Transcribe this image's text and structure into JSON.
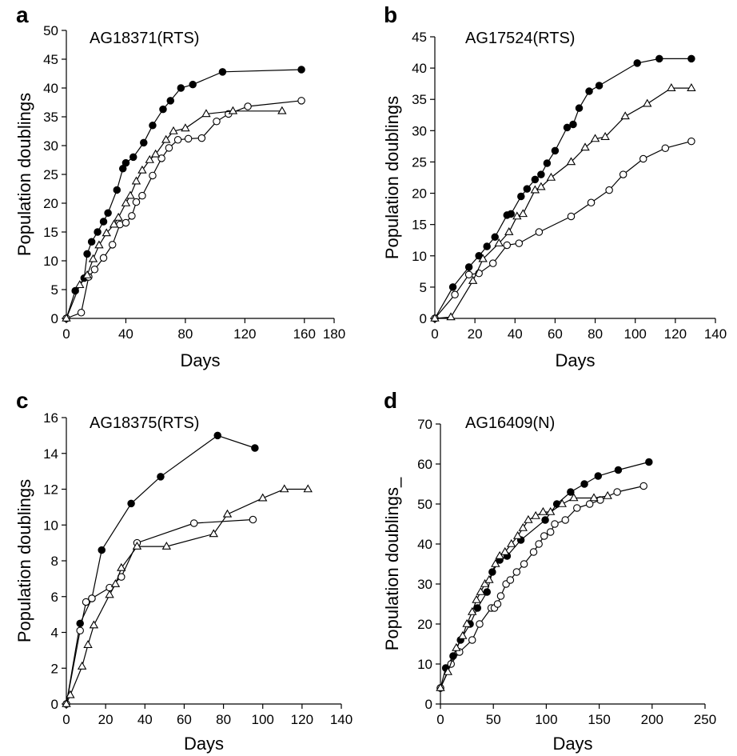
{
  "chart_data": [
    {
      "type": "line",
      "panel": "a",
      "title": "AG18371(RTS)",
      "xlabel": "Days",
      "ylabel": "Population doublings",
      "xlim": [
        0,
        180
      ],
      "ylim": [
        0,
        50
      ],
      "xticks": [
        0,
        40,
        80,
        120,
        160,
        180
      ],
      "yticks": [
        0,
        5,
        10,
        15,
        20,
        25,
        30,
        35,
        40,
        45,
        50
      ],
      "series": [
        {
          "marker": "filled-circle",
          "points": [
            [
              0,
              0
            ],
            [
              6,
              4.8
            ],
            [
              12,
              7
            ],
            [
              14,
              11.2
            ],
            [
              17,
              13.3
            ],
            [
              21,
              15
            ],
            [
              25,
              16.8
            ],
            [
              28,
              18.3
            ],
            [
              34,
              22.3
            ],
            [
              38,
              26
            ],
            [
              40,
              27
            ],
            [
              45,
              28
            ],
            [
              52,
              30.5
            ],
            [
              58,
              33.5
            ],
            [
              65,
              36.3
            ],
            [
              70,
              37.8
            ],
            [
              77,
              40
            ],
            [
              85,
              40.6
            ],
            [
              105,
              42.8
            ],
            [
              158,
              43.2
            ]
          ]
        },
        {
          "marker": "open-circle",
          "points": [
            [
              0,
              0
            ],
            [
              10,
              1
            ],
            [
              15,
              7.2
            ],
            [
              19,
              8.5
            ],
            [
              25,
              10.5
            ],
            [
              31,
              12.8
            ],
            [
              36,
              16.3
            ],
            [
              40,
              16.6
            ],
            [
              44,
              17.8
            ],
            [
              47,
              20.2
            ],
            [
              51,
              21.3
            ],
            [
              58,
              24.8
            ],
            [
              64,
              27.8
            ],
            [
              69,
              29.6
            ],
            [
              75,
              31
            ],
            [
              82,
              31.2
            ],
            [
              91,
              31.3
            ],
            [
              101,
              34.2
            ],
            [
              109,
              35.5
            ],
            [
              122,
              36.8
            ],
            [
              158,
              37.8
            ]
          ]
        },
        {
          "marker": "open-triangle",
          "points": [
            [
              0,
              0
            ],
            [
              9,
              5.8
            ],
            [
              14,
              7.5
            ],
            [
              18,
              10.3
            ],
            [
              22,
              12.7
            ],
            [
              27,
              14.8
            ],
            [
              32,
              16.3
            ],
            [
              35,
              17.5
            ],
            [
              40,
              20
            ],
            [
              43,
              21.3
            ],
            [
              47,
              23.8
            ],
            [
              51,
              25.7
            ],
            [
              56,
              27.5
            ],
            [
              60,
              28.5
            ],
            [
              67,
              31
            ],
            [
              72,
              32.5
            ],
            [
              80,
              33
            ],
            [
              94,
              35.5
            ],
            [
              112,
              36
            ],
            [
              145,
              36
            ]
          ]
        }
      ]
    },
    {
      "type": "line",
      "panel": "b",
      "title": "AG17524(RTS)",
      "xlabel": "Days",
      "ylabel": "Population doublings",
      "xlim": [
        0,
        140
      ],
      "ylim": [
        0,
        45
      ],
      "xticks": [
        0,
        20,
        40,
        60,
        80,
        100,
        120,
        140
      ],
      "yticks": [
        0,
        5,
        10,
        15,
        20,
        25,
        30,
        35,
        40,
        45
      ],
      "series": [
        {
          "marker": "filled-circle",
          "points": [
            [
              0,
              0
            ],
            [
              9,
              5
            ],
            [
              17,
              8.2
            ],
            [
              22,
              10
            ],
            [
              26,
              11.5
            ],
            [
              30,
              13
            ],
            [
              36,
              16.5
            ],
            [
              38,
              16.7
            ],
            [
              43,
              19.5
            ],
            [
              46,
              20.7
            ],
            [
              50,
              22.2
            ],
            [
              53,
              23
            ],
            [
              56,
              24.8
            ],
            [
              60,
              26.8
            ],
            [
              66,
              30.5
            ],
            [
              69,
              31
            ],
            [
              72,
              33.6
            ],
            [
              77,
              36.3
            ],
            [
              82,
              37.2
            ],
            [
              101,
              40.8
            ],
            [
              112,
              41.5
            ],
            [
              128,
              41.5
            ]
          ]
        },
        {
          "marker": "open-circle",
          "points": [
            [
              0,
              0
            ],
            [
              10,
              3.8
            ],
            [
              17,
              7
            ],
            [
              22,
              7.2
            ],
            [
              29,
              8.8
            ],
            [
              36,
              11.7
            ],
            [
              42,
              12
            ],
            [
              52,
              13.8
            ],
            [
              68,
              16.3
            ],
            [
              78,
              18.5
            ],
            [
              87,
              20.5
            ],
            [
              94,
              23
            ],
            [
              104,
              25.5
            ],
            [
              115,
              27.2
            ],
            [
              128,
              28.3
            ]
          ]
        },
        {
          "marker": "open-triangle",
          "points": [
            [
              0,
              0
            ],
            [
              8,
              0.2
            ],
            [
              19,
              6
            ],
            [
              24,
              9.5
            ],
            [
              32,
              12
            ],
            [
              37,
              13.8
            ],
            [
              41,
              16.3
            ],
            [
              44,
              16.7
            ],
            [
              50,
              20.5
            ],
            [
              53,
              21
            ],
            [
              58,
              22.5
            ],
            [
              68,
              25
            ],
            [
              75,
              27.3
            ],
            [
              80,
              28.7
            ],
            [
              85,
              29
            ],
            [
              95,
              32.3
            ],
            [
              106,
              34.3
            ],
            [
              118,
              36.8
            ],
            [
              128,
              36.8
            ]
          ]
        }
      ]
    },
    {
      "type": "line",
      "panel": "c",
      "title": "AG18375(RTS)",
      "xlabel": "Days",
      "ylabel": "Population doublings",
      "xlim": [
        0,
        140
      ],
      "ylim": [
        0,
        16
      ],
      "xticks": [
        0,
        20,
        40,
        60,
        80,
        100,
        120,
        140
      ],
      "yticks": [
        0,
        2,
        4,
        6,
        8,
        10,
        12,
        14,
        16
      ],
      "series": [
        {
          "marker": "filled-circle",
          "points": [
            [
              0,
              0
            ],
            [
              7,
              4.5
            ],
            [
              13,
              5.9
            ],
            [
              18,
              8.6
            ],
            [
              33,
              11.2
            ],
            [
              48,
              12.7
            ],
            [
              77,
              15
            ],
            [
              96,
              14.3
            ]
          ]
        },
        {
          "marker": "open-circle",
          "points": [
            [
              0,
              0
            ],
            [
              7,
              4.1
            ],
            [
              10,
              5.7
            ],
            [
              13,
              5.9
            ],
            [
              22,
              6.5
            ],
            [
              28,
              7.1
            ],
            [
              36,
              9
            ],
            [
              65,
              10.1
            ],
            [
              95,
              10.3
            ]
          ]
        },
        {
          "marker": "open-triangle",
          "points": [
            [
              0,
              0
            ],
            [
              2,
              0.5
            ],
            [
              8,
              2.1
            ],
            [
              11,
              3.3
            ],
            [
              14,
              4.4
            ],
            [
              22,
              6.1
            ],
            [
              25,
              6.7
            ],
            [
              28,
              7.6
            ],
            [
              36,
              8.8
            ],
            [
              51,
              8.8
            ],
            [
              75,
              9.5
            ],
            [
              82,
              10.6
            ],
            [
              100,
              11.5
            ],
            [
              111,
              12
            ],
            [
              123,
              12
            ]
          ]
        }
      ]
    },
    {
      "type": "line",
      "panel": "d",
      "title": "AG16409(N)",
      "xlabel": "Days",
      "ylabel": "Population doublings_",
      "xlim": [
        0,
        250
      ],
      "ylim": [
        0,
        70
      ],
      "xticks": [
        0,
        50,
        100,
        150,
        200,
        250
      ],
      "yticks": [
        0,
        10,
        20,
        30,
        40,
        50,
        60,
        70
      ],
      "series": [
        {
          "marker": "filled-circle",
          "points": [
            [
              0,
              4
            ],
            [
              5,
              9
            ],
            [
              12,
              12
            ],
            [
              19,
              16
            ],
            [
              28,
              20
            ],
            [
              35,
              24
            ],
            [
              44,
              28
            ],
            [
              49,
              33
            ],
            [
              56,
              36
            ],
            [
              63,
              37
            ],
            [
              76,
              41
            ],
            [
              99,
              46
            ],
            [
              110,
              50
            ],
            [
              123,
              53
            ],
            [
              136,
              55
            ],
            [
              149,
              57
            ],
            [
              168,
              58.5
            ],
            [
              197,
              60.5
            ]
          ]
        },
        {
          "marker": "open-circle",
          "points": [
            [
              0,
              4
            ],
            [
              10,
              10
            ],
            [
              18,
              13
            ],
            [
              30,
              16
            ],
            [
              37,
              20
            ],
            [
              48,
              24
            ],
            [
              51,
              24
            ],
            [
              54,
              25
            ],
            [
              57,
              27
            ],
            [
              62,
              30
            ],
            [
              66,
              31
            ],
            [
              72,
              33
            ],
            [
              79,
              35
            ],
            [
              88,
              38
            ],
            [
              93,
              40
            ],
            [
              98,
              42
            ],
            [
              104,
              43
            ],
            [
              108,
              45
            ],
            [
              118,
              46
            ],
            [
              129,
              49
            ],
            [
              141,
              50
            ],
            [
              151,
              51
            ],
            [
              167,
              53
            ],
            [
              192,
              54.5
            ]
          ]
        },
        {
          "marker": "open-triangle",
          "points": [
            [
              0,
              4
            ],
            [
              7,
              8
            ],
            [
              15,
              14
            ],
            [
              21,
              17
            ],
            [
              25,
              20
            ],
            [
              30,
              23
            ],
            [
              34,
              26
            ],
            [
              38,
              28
            ],
            [
              42,
              30
            ],
            [
              46,
              31
            ],
            [
              52,
              35
            ],
            [
              56,
              37
            ],
            [
              61,
              38
            ],
            [
              67,
              40
            ],
            [
              73,
              42
            ],
            [
              78,
              44
            ],
            [
              83,
              46
            ],
            [
              90,
              47
            ],
            [
              97,
              48
            ],
            [
              104,
              48
            ],
            [
              115,
              50
            ],
            [
              126,
              51.5
            ],
            [
              145,
              51.5
            ],
            [
              158,
              52
            ]
          ]
        }
      ]
    }
  ]
}
